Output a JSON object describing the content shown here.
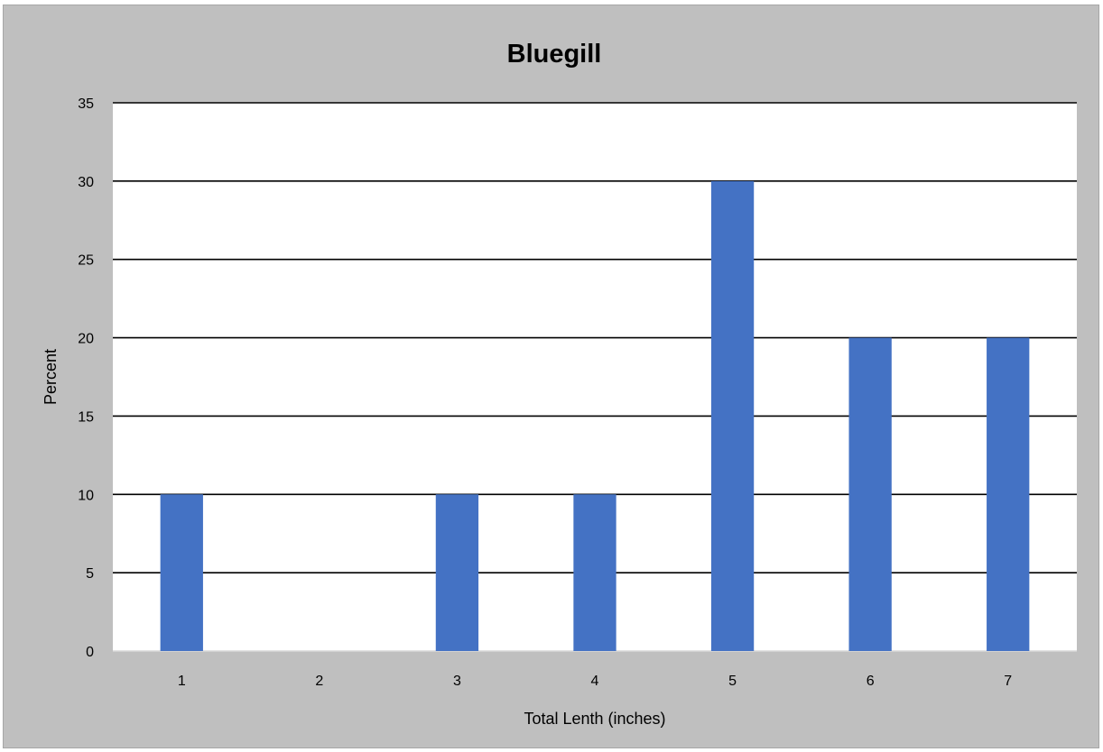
{
  "chart_data": {
    "type": "bar",
    "title": "Bluegill",
    "xlabel": "Total Lenth (inches)",
    "ylabel": "Percent",
    "categories": [
      "1",
      "2",
      "3",
      "4",
      "5",
      "6",
      "7"
    ],
    "values": [
      10,
      0,
      10,
      10,
      30,
      20,
      20
    ],
    "ylim": [
      0,
      35
    ],
    "yticks": [
      "0",
      "5",
      "10",
      "15",
      "20",
      "25",
      "30",
      "35"
    ],
    "grid": true,
    "legend": "none",
    "colors": {
      "bar": "#4472c4",
      "background": "#bfbfbf",
      "plot_background": "#ffffff",
      "gridline": "#000000"
    }
  }
}
